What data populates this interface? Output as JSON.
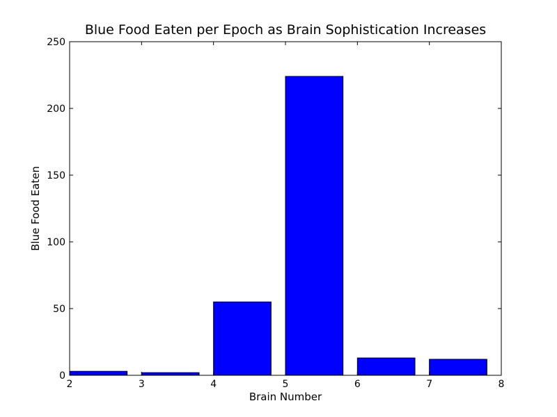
{
  "chart_data": {
    "type": "bar",
    "title": "Blue Food Eaten per Epoch as Brain Sophistication Increases",
    "xlabel": "Brain Number",
    "ylabel": "Blue Food Eaten",
    "xlim": [
      2,
      8
    ],
    "ylim": [
      0,
      250
    ],
    "xticks": [
      "2",
      "3",
      "4",
      "5",
      "6",
      "7",
      "8"
    ],
    "yticks": [
      "0",
      "50",
      "100",
      "150",
      "200",
      "250"
    ],
    "bar_width": 0.8,
    "bars": [
      {
        "x": 2,
        "value": 3
      },
      {
        "x": 3,
        "value": 2
      },
      {
        "x": 4,
        "value": 55
      },
      {
        "x": 5,
        "value": 224
      },
      {
        "x": 6,
        "value": 13
      },
      {
        "x": 7,
        "value": 12
      }
    ],
    "bar_color": "#0000ff",
    "grid": false,
    "legend": "none"
  }
}
